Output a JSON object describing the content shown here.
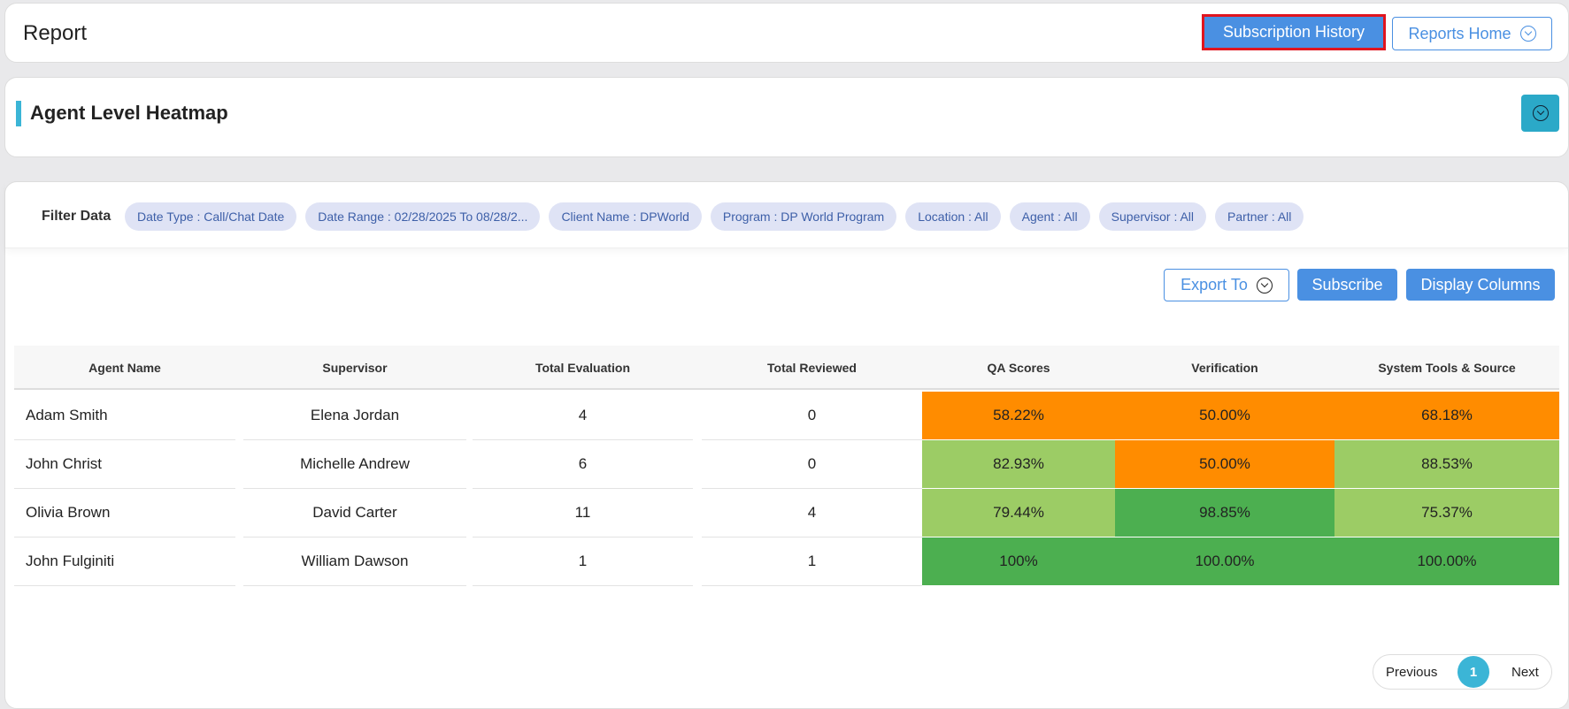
{
  "header": {
    "title": "Report",
    "subscription_history": "Subscription History",
    "reports_home": "Reports Home"
  },
  "section": {
    "title": "Agent Level Heatmap"
  },
  "filters": {
    "label": "Filter Data",
    "chips": [
      "Date Type : Call/Chat Date",
      "Date Range : 02/28/2025 To 08/28/2...",
      "Client Name : DPWorld",
      "Program : DP World Program",
      "Location : All",
      "Agent : All",
      "Supervisor : All",
      "Partner : All"
    ]
  },
  "actions": {
    "export": "Export To",
    "subscribe": "Subscribe",
    "display_columns": "Display Columns"
  },
  "table": {
    "headers": [
      "Agent Name",
      "Supervisor",
      "Total Evaluation",
      "Total Reviewed",
      "QA Scores",
      "Verification",
      "System Tools & Source"
    ],
    "rows": [
      [
        "Adam Smith",
        "Elena Jordan",
        4,
        0,
        "58.22%",
        "50.00%",
        "68.18%"
      ],
      [
        "John Christ",
        "Michelle Andrew",
        6,
        0,
        "82.93%",
        "50.00%",
        "88.53%"
      ],
      [
        "Olivia Brown",
        "David Carter",
        11,
        4,
        "79.44%",
        "98.85%",
        "75.37%"
      ],
      [
        "John Fulginiti",
        "William Dawson",
        1,
        1,
        "100%",
        "100.00%",
        "100.00%"
      ]
    ],
    "cell_colors": [
      [
        "#ff8c00",
        "#ff8c00",
        "#ff8c00"
      ],
      [
        "#9ccc65",
        "#ff8c00",
        "#9ccc65"
      ],
      [
        "#9ccc65",
        "#4caf50",
        "#9ccc65"
      ],
      [
        "#4caf50",
        "#4caf50",
        "#4caf50"
      ]
    ]
  },
  "pagination": {
    "previous": "Previous",
    "page": 1,
    "next": "Next"
  }
}
